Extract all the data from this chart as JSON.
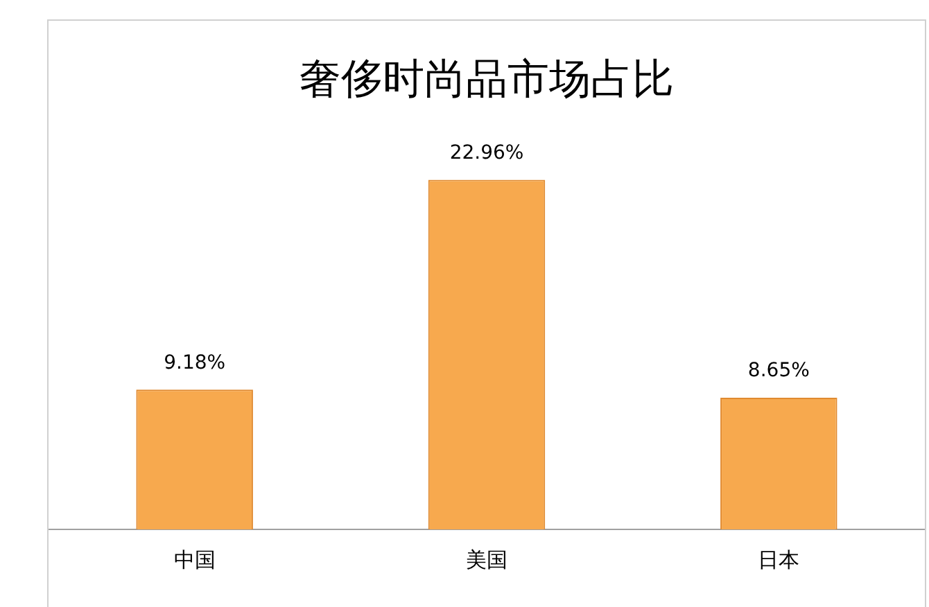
{
  "chart_data": {
    "type": "bar",
    "title": "奢侈时尚品市场占比",
    "categories": [
      "中国",
      "美国",
      "日本"
    ],
    "values": [
      9.18,
      22.96,
      8.65
    ],
    "value_labels": [
      "9.18%",
      "22.96%",
      "8.65%"
    ],
    "color": "#f7a94e",
    "grid": false,
    "legend": false
  }
}
